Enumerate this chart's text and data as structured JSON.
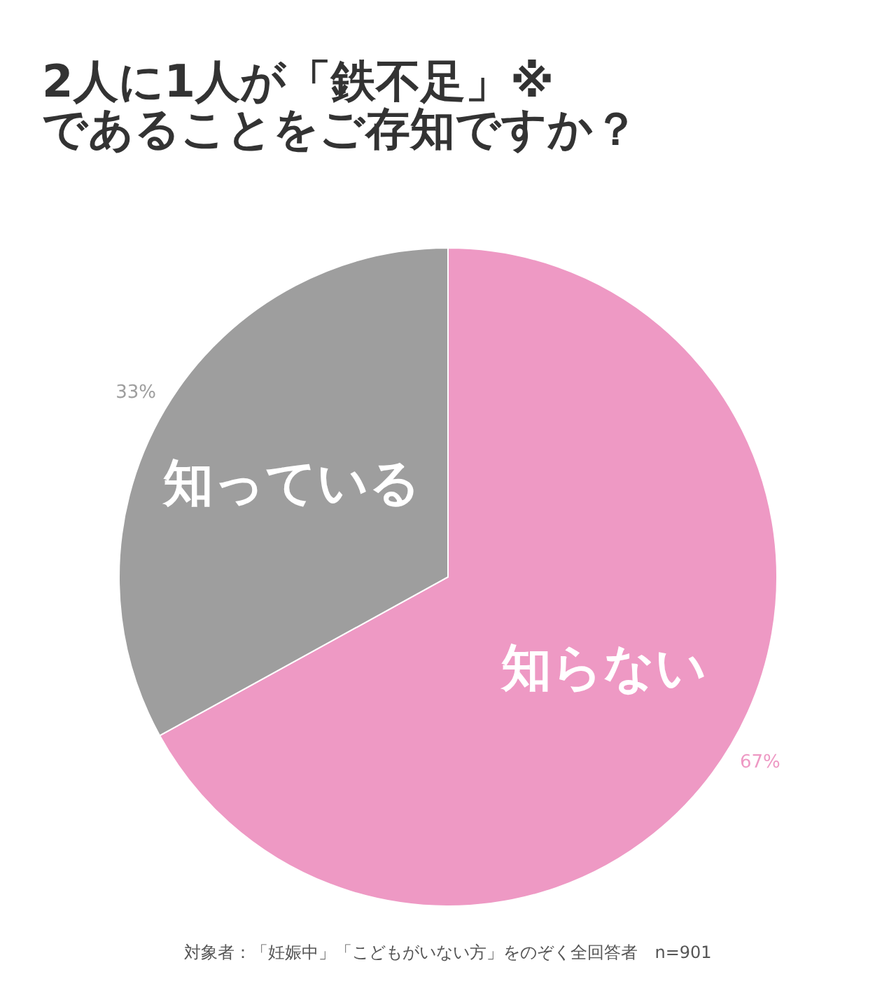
{
  "chart_data": {
    "type": "pie",
    "title": "2人に1人が「鉄不足」※\nであることをご存知ですか？",
    "categories": [
      "知らない",
      "知っている"
    ],
    "values": [
      67,
      33
    ],
    "colors": [
      "#ee99c4",
      "#9e9e9e"
    ],
    "value_labels": [
      "67%",
      "33%"
    ],
    "annotations": [
      "対象者：「妊娠中」「こどもがいない方」をのぞく全回答者　n=901"
    ]
  }
}
